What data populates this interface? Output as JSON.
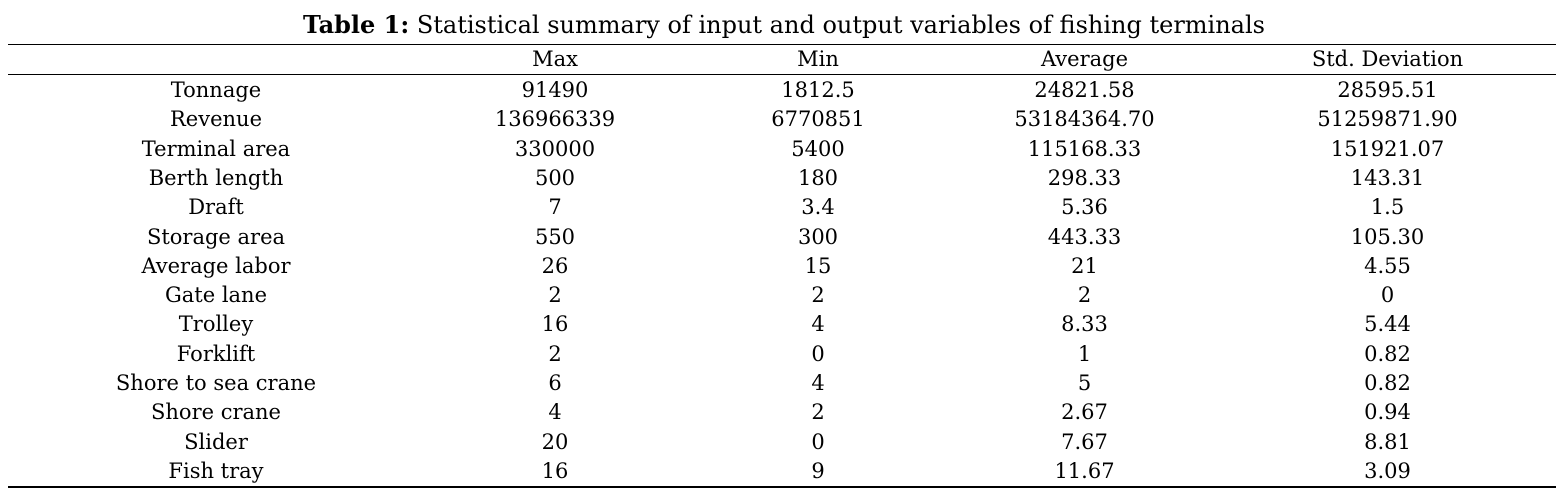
{
  "caption": {
    "label": "Table 1:",
    "text": " Statistical summary of input and output variables of fishing terminals"
  },
  "table": {
    "headers": [
      "",
      "Max",
      "Min",
      "Average",
      "Std. Deviation"
    ],
    "rows": [
      [
        "Tonnage",
        "91490",
        "1812.5",
        "24821.58",
        "28595.51"
      ],
      [
        "Revenue",
        "136966339",
        "6770851",
        "53184364.70",
        "51259871.90"
      ],
      [
        "Terminal area",
        "330000",
        "5400",
        "115168.33",
        "151921.07"
      ],
      [
        "Berth length",
        "500",
        "180",
        "298.33",
        "143.31"
      ],
      [
        "Draft",
        "7",
        "3.4",
        "5.36",
        "1.5"
      ],
      [
        "Storage area",
        "550",
        "300",
        "443.33",
        "105.30"
      ],
      [
        "Average labor",
        "26",
        "15",
        "21",
        "4.55"
      ],
      [
        "Gate lane",
        "2",
        "2",
        "2",
        "0"
      ],
      [
        "Trolley",
        "16",
        "4",
        "8.33",
        "5.44"
      ],
      [
        "Forklift",
        "2",
        "0",
        "1",
        "0.82"
      ],
      [
        "Shore to sea crane",
        "6",
        "4",
        "5",
        "0.82"
      ],
      [
        "Shore crane",
        "4",
        "2",
        "2.67",
        "0.94"
      ],
      [
        "Slider",
        "20",
        "0",
        "7.67",
        "8.81"
      ],
      [
        "Fish tray",
        "16",
        "9",
        "11.67",
        "3.09"
      ]
    ]
  }
}
